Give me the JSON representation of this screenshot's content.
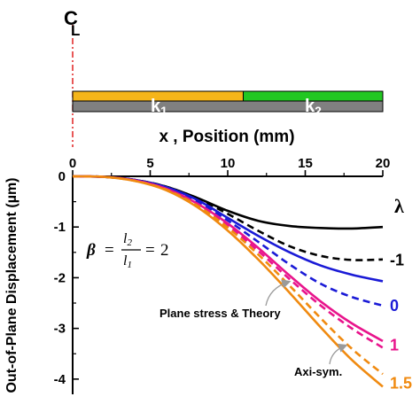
{
  "schematic": {
    "centerline_label": "C",
    "centerline_sub": "L",
    "segment1_label": "k",
    "segment1_sub": "1",
    "segment2_label": "k",
    "segment2_sub": "2",
    "segment1_color": "#f5b51a",
    "segment2_color": "#22c722",
    "base_color": "#808080",
    "segment1_extent_mm": [
      0,
      11
    ],
    "segment2_extent_mm": [
      11,
      20
    ],
    "xlabel": "x , Position (mm)"
  },
  "formula": {
    "beta": "β",
    "eq1": "=",
    "l2": "l",
    "l2_sub": "2",
    "l1": "l",
    "l1_sub": "1",
    "eq2": "=",
    "val": "2"
  },
  "legend_title": "λ",
  "annotations": {
    "plane_stress": "Plane stress & Theory",
    "axi_sym": "Axi-sym."
  },
  "chart_data": {
    "type": "line",
    "title": "",
    "xlabel": "x , Position (mm)",
    "ylabel": "Out-of-Plane Displacement (µm)",
    "xlim": [
      0,
      20
    ],
    "ylim": [
      -4.3,
      0
    ],
    "x_ticks": [
      "0",
      "5",
      "10",
      "15",
      "20"
    ],
    "y_ticks": [
      "0",
      "-1",
      "-2",
      "-3",
      "-4"
    ],
    "x_tick_values": [
      0,
      5,
      10,
      15,
      20
    ],
    "y_tick_values": [
      0,
      -1,
      -2,
      -3,
      -4
    ],
    "grid": false,
    "series": [
      {
        "name": "-1",
        "style": "solid",
        "color": "#000000",
        "x": [
          0,
          2,
          4,
          6,
          8,
          10,
          12,
          14,
          16,
          18,
          20
        ],
        "y": [
          0,
          -0.01,
          -0.07,
          -0.2,
          -0.42,
          -0.68,
          -0.88,
          -0.98,
          -1.02,
          -1.03,
          -1.0
        ]
      },
      {
        "name": "-1",
        "style": "dashed",
        "color": "#000000",
        "x": [
          0,
          2,
          4,
          6,
          8,
          10,
          12,
          14,
          16,
          18,
          20
        ],
        "y": [
          0,
          -0.01,
          -0.07,
          -0.2,
          -0.43,
          -0.74,
          -1.08,
          -1.38,
          -1.57,
          -1.65,
          -1.64
        ]
      },
      {
        "name": "0",
        "style": "solid",
        "color": "#1a1ad6",
        "x": [
          0,
          2,
          4,
          6,
          8,
          10,
          12,
          14,
          16,
          18,
          20
        ],
        "y": [
          0,
          -0.01,
          -0.07,
          -0.21,
          -0.46,
          -0.82,
          -1.18,
          -1.5,
          -1.76,
          -1.94,
          -2.07
        ]
      },
      {
        "name": "0",
        "style": "dashed",
        "color": "#1a1ad6",
        "x": [
          0,
          2,
          4,
          6,
          8,
          10,
          12,
          14,
          16,
          18,
          20
        ],
        "y": [
          0,
          -0.01,
          -0.08,
          -0.23,
          -0.49,
          -0.87,
          -1.3,
          -1.74,
          -2.12,
          -2.38,
          -2.55
        ]
      },
      {
        "name": "1",
        "style": "solid",
        "color": "#e8148c",
        "x": [
          0,
          2,
          4,
          6,
          8,
          10,
          12,
          14,
          16,
          18,
          20
        ],
        "y": [
          0,
          -0.01,
          -0.08,
          -0.24,
          -0.53,
          -0.93,
          -1.42,
          -1.96,
          -2.47,
          -2.9,
          -3.25
        ]
      },
      {
        "name": "1",
        "style": "dashed",
        "color": "#e8148c",
        "x": [
          0,
          2,
          4,
          6,
          8,
          10,
          12,
          14,
          16,
          18,
          20
        ],
        "y": [
          0,
          -0.01,
          -0.08,
          -0.25,
          -0.55,
          -0.97,
          -1.48,
          -2.03,
          -2.55,
          -3.0,
          -3.38
        ]
      },
      {
        "name": "1.5",
        "style": "solid",
        "color": "#f08a10",
        "x": [
          0,
          2,
          4,
          6,
          8,
          10,
          12,
          14,
          16,
          18,
          20
        ],
        "y": [
          0,
          -0.01,
          -0.09,
          -0.27,
          -0.6,
          -1.07,
          -1.65,
          -2.3,
          -2.98,
          -3.62,
          -4.15
        ]
      },
      {
        "name": "1.5",
        "style": "dashed",
        "color": "#f08a10",
        "x": [
          0,
          2,
          4,
          6,
          8,
          10,
          12,
          14,
          16,
          18,
          20
        ],
        "y": [
          0,
          -0.01,
          -0.09,
          -0.26,
          -0.57,
          -1.01,
          -1.55,
          -2.16,
          -2.8,
          -3.4,
          -3.9
        ]
      }
    ],
    "lambda_labels": [
      {
        "text": "-1",
        "color": "#000000",
        "y": -1.65
      },
      {
        "text": "0",
        "color": "#1a1ad6",
        "y": -2.55
      },
      {
        "text": "1",
        "color": "#e8148c",
        "y": -3.33
      },
      {
        "text": "1.5",
        "color": "#f08a10",
        "y": -4.08
      }
    ]
  }
}
